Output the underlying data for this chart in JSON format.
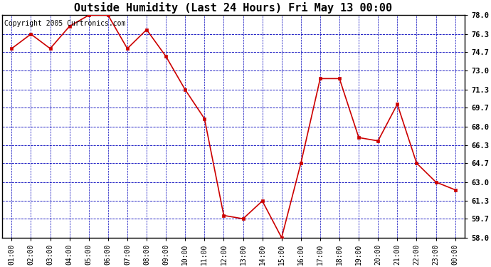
{
  "title": "Outside Humidity (Last 24 Hours) Fri May 13 00:00",
  "x_labels": [
    "01:00",
    "02:00",
    "03:00",
    "04:00",
    "05:00",
    "06:00",
    "07:00",
    "08:00",
    "09:00",
    "10:00",
    "11:00",
    "12:00",
    "13:00",
    "14:00",
    "15:00",
    "16:00",
    "17:00",
    "18:00",
    "19:00",
    "20:00",
    "21:00",
    "22:00",
    "23:00",
    "00:00"
  ],
  "y_values": [
    75.0,
    76.3,
    75.0,
    77.0,
    78.0,
    78.0,
    75.0,
    76.7,
    74.3,
    71.3,
    68.7,
    60.0,
    59.7,
    61.3,
    58.0,
    64.7,
    72.3,
    72.3,
    67.0,
    66.7,
    70.0,
    64.7,
    63.0,
    62.3
  ],
  "ylim_min": 58.0,
  "ylim_max": 78.0,
  "yticks": [
    58.0,
    59.7,
    61.3,
    63.0,
    64.7,
    66.3,
    68.0,
    69.7,
    71.3,
    73.0,
    74.7,
    76.3,
    78.0
  ],
  "line_color": "#cc0000",
  "marker_color": "#cc0000",
  "bg_color": "#ffffff",
  "plot_bg_color": "#ffffff",
  "grid_color": "#0000bb",
  "title_fontsize": 11,
  "copyright_text": "Copyright 2005 Curtronics.com",
  "copyright_fontsize": 7
}
